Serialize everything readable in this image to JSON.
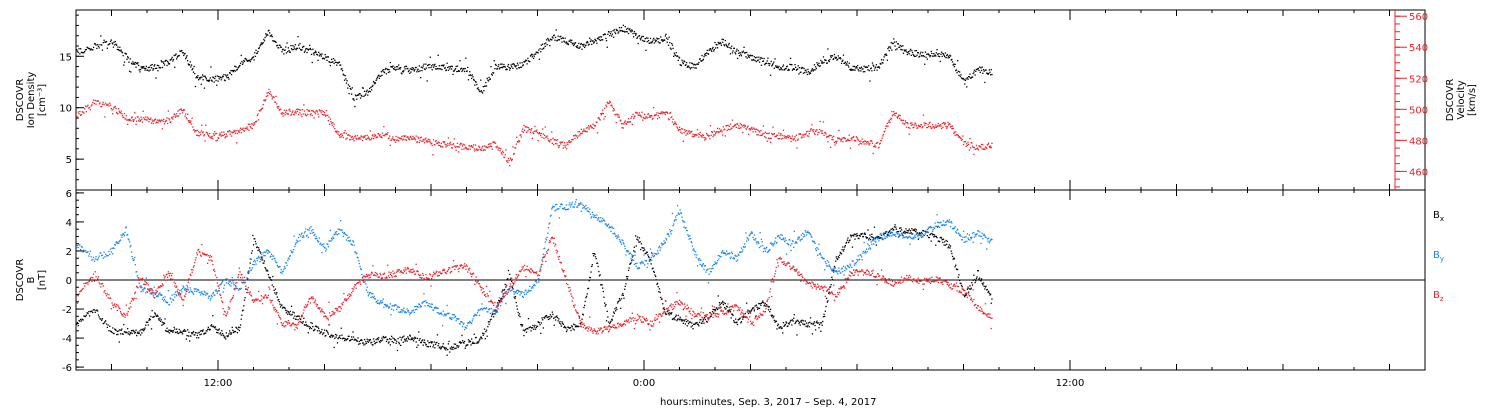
{
  "colors": {
    "black": "#000000",
    "red": "#e8242b",
    "blue": "#1a86e6",
    "axis": "#000000"
  },
  "x_axis": {
    "label": "hours:minutes, Sep.  3, 2017 – Sep.  4, 2017",
    "ticks": [
      {
        "label": "12:00",
        "hours": 12
      },
      {
        "label": "0:00",
        "hours": 24
      },
      {
        "label": "12:00",
        "hours": 36
      }
    ]
  },
  "chart_data": [
    {
      "type": "scatter",
      "panel": "top",
      "x_units": "hours since Sep. 3, 2017 00:00",
      "xlim": [
        8,
        46
      ],
      "grid": false,
      "left_axis": {
        "label_lines": [
          "DSCOVR",
          "Ion Density",
          "[cm⁻³]"
        ],
        "ticks": [
          "5",
          "10",
          "15"
        ],
        "ylim": [
          2,
          19.5
        ]
      },
      "right_axis": {
        "label_lines": [
          "DSCOVR",
          "Velocity",
          "[km/s]"
        ],
        "ticks": [
          "460",
          "480",
          "500",
          "520",
          "540",
          "560"
        ],
        "ylim": [
          448,
          564
        ],
        "color": "#e8242b"
      },
      "series": [
        {
          "color": "#000000",
          "axis": "left",
          "x": [
            8.0,
            8.5,
            9.0,
            9.4,
            9.8,
            10.2,
            10.6,
            11.0,
            11.4,
            11.8,
            12.2,
            12.6,
            13.0,
            13.4,
            13.8,
            14.2,
            14.6,
            15.0,
            15.4,
            15.8,
            16.2,
            16.6,
            17.0,
            17.4,
            17.8,
            18.2,
            18.6,
            19.0,
            19.4,
            19.8,
            20.2,
            20.6,
            21.0,
            21.4,
            21.8,
            22.2,
            22.6,
            23.0,
            23.4,
            23.8,
            24.2,
            24.6,
            25.0,
            25.4,
            25.8,
            26.2,
            26.6,
            27.0,
            27.4,
            27.8,
            28.2,
            28.6,
            29.0,
            29.4,
            29.8,
            30.2,
            30.6,
            31.0,
            31.4,
            31.8,
            32.2,
            32.6,
            33.0
          ],
          "y": [
            15.5,
            16.0,
            16.6,
            15.0,
            13.8,
            14.0,
            14.5,
            15.5,
            13.0,
            12.8,
            13.0,
            14.3,
            15.0,
            17.5,
            15.5,
            16.0,
            15.5,
            15.0,
            14.2,
            11.0,
            11.5,
            13.5,
            14.0,
            13.7,
            14.0,
            14.0,
            13.8,
            13.8,
            11.5,
            14.0,
            14.0,
            14.3,
            15.5,
            17.0,
            16.5,
            16.0,
            16.5,
            17.2,
            17.8,
            17.0,
            16.5,
            16.8,
            14.5,
            14.0,
            15.5,
            16.5,
            15.5,
            15.0,
            14.5,
            14.0,
            14.0,
            13.5,
            14.5,
            15.0,
            14.0,
            13.8,
            14.0,
            16.5,
            15.5,
            15.2,
            15.3,
            15.0,
            12.5
          ],
          "end": {
            "x": [
              33.4,
              33.8
            ],
            "y": [
              13.8,
              13.5
            ]
          }
        },
        {
          "color": "#e8242b",
          "axis": "right",
          "x": [
            8.0,
            8.5,
            9.0,
            9.4,
            9.8,
            10.2,
            10.6,
            11.0,
            11.4,
            11.8,
            12.2,
            12.6,
            13.0,
            13.4,
            13.8,
            14.2,
            14.6,
            15.0,
            15.4,
            15.8,
            16.2,
            16.6,
            17.0,
            17.4,
            17.8,
            18.2,
            18.6,
            19.0,
            19.4,
            19.8,
            20.2,
            20.6,
            21.0,
            21.4,
            21.8,
            22.2,
            22.6,
            23.0,
            23.4,
            23.8,
            24.2,
            24.6,
            25.0,
            25.4,
            25.8,
            26.2,
            26.6,
            27.0,
            27.4,
            27.8,
            28.2,
            28.6,
            29.0,
            29.4,
            29.8,
            30.2,
            30.6,
            31.0,
            31.4,
            31.8,
            32.2,
            32.6,
            33.0
          ],
          "y": [
            496,
            505,
            502,
            495,
            494,
            493,
            493,
            500,
            485,
            483,
            484,
            487,
            490,
            512,
            498,
            499,
            498,
            498,
            484,
            482,
            482,
            484,
            481,
            482,
            480,
            478,
            477,
            476,
            475,
            478,
            466,
            488,
            485,
            480,
            477,
            486,
            490,
            505,
            490,
            498,
            495,
            498,
            487,
            484,
            483,
            488,
            490,
            487,
            484,
            483,
            481,
            485,
            486,
            480,
            482,
            479,
            477,
            499,
            490,
            490,
            490,
            490,
            478
          ],
          "end": {
            "x": [
              33.4,
              33.8
            ],
            "y": [
              476,
              477
            ]
          }
        }
      ]
    },
    {
      "type": "scatter",
      "panel": "bottom",
      "x_units": "hours since Sep. 3, 2017 00:00",
      "xlim": [
        8,
        46
      ],
      "grid": false,
      "zero_line": true,
      "left_axis": {
        "label_lines": [
          "DSCOVR",
          "B",
          "[nT]"
        ],
        "ticks": [
          "-6",
          "-4",
          "-2",
          "0",
          "2",
          "4",
          "6"
        ],
        "ylim": [
          -6.2,
          6.2
        ]
      },
      "legend": {
        "placement": "right",
        "entries": [
          {
            "text": "B",
            "sub": "x",
            "color": "#000000"
          },
          {
            "text": "B",
            "sub": "y",
            "color": "#1a86e6"
          },
          {
            "text": "B",
            "sub": "z",
            "color": "#e8242b"
          }
        ]
      },
      "series": [
        {
          "name": "Bx",
          "color": "#000000",
          "x": [
            8.0,
            8.5,
            9.0,
            9.4,
            9.8,
            10.2,
            10.6,
            11.0,
            11.4,
            11.8,
            12.2,
            12.6,
            13.0,
            13.4,
            13.8,
            14.2,
            14.6,
            15.0,
            15.4,
            15.8,
            16.2,
            16.6,
            17.0,
            17.4,
            17.8,
            18.2,
            18.6,
            19.0,
            19.4,
            19.8,
            20.2,
            20.6,
            21.0,
            21.4,
            21.8,
            22.2,
            22.6,
            23.0,
            23.4,
            23.8,
            24.2,
            24.6,
            25.0,
            25.4,
            25.8,
            26.2,
            26.6,
            27.0,
            27.4,
            27.8,
            28.2,
            28.6,
            29.0,
            29.4,
            29.8,
            30.2,
            30.6,
            31.0,
            31.4,
            31.8,
            32.2,
            32.6,
            33.0
          ],
          "y": [
            -3.0,
            -2.0,
            -3.5,
            -3.5,
            -3.6,
            -2.2,
            -3.6,
            -3.5,
            -3.8,
            -3.2,
            -3.8,
            -3.3,
            2.9,
            0.5,
            -2.0,
            -2.5,
            -3.2,
            -3.6,
            -3.9,
            -4.1,
            -4.3,
            -4.0,
            -4.2,
            -3.9,
            -4.3,
            -4.5,
            -4.6,
            -4.3,
            -4.0,
            -2.0,
            0.3,
            -3.6,
            -3.0,
            -2.3,
            -3.3,
            -3.1,
            2.0,
            -3.0,
            -0.8,
            3.0,
            1.2,
            -2.3,
            -2.6,
            -3.2,
            -2.5,
            -1.5,
            -3.0,
            -2.0,
            -1.5,
            -3.2,
            -2.8,
            -3.0,
            -3.1,
            1.5,
            3.0,
            3.2,
            2.8,
            3.5,
            3.4,
            3.3,
            3.0,
            2.4,
            -1.0
          ],
          "end": {
            "x": [
              33.4,
              33.8
            ],
            "y": [
              0.3,
              -1.2
            ]
          }
        },
        {
          "name": "By",
          "color": "#1a86e6",
          "x": [
            8.0,
            8.5,
            9.0,
            9.4,
            9.8,
            10.2,
            10.6,
            11.0,
            11.4,
            11.8,
            12.2,
            12.6,
            13.0,
            13.4,
            13.8,
            14.2,
            14.6,
            15.0,
            15.4,
            15.8,
            16.2,
            16.6,
            17.0,
            17.4,
            17.8,
            18.2,
            18.6,
            19.0,
            19.4,
            19.8,
            20.2,
            20.6,
            21.0,
            21.4,
            21.8,
            22.2,
            22.6,
            23.0,
            23.4,
            23.8,
            24.2,
            24.6,
            25.0,
            25.4,
            25.8,
            26.2,
            26.6,
            27.0,
            27.4,
            27.8,
            28.2,
            28.6,
            29.0,
            29.4,
            29.8,
            30.2,
            30.6,
            31.0,
            31.4,
            31.8,
            32.2,
            32.6,
            33.0
          ],
          "y": [
            2.5,
            1.5,
            2.0,
            3.5,
            -0.5,
            -0.8,
            -1.5,
            -0.5,
            -0.8,
            -1.2,
            0.0,
            -0.5,
            1.2,
            2.0,
            0.5,
            2.8,
            3.5,
            2.2,
            3.5,
            2.5,
            -0.8,
            -1.6,
            -1.9,
            -2.2,
            -1.5,
            -2.1,
            -2.5,
            -3.2,
            -1.8,
            -2.2,
            -0.5,
            -1.0,
            0.0,
            5.0,
            5.1,
            5.3,
            4.5,
            3.8,
            2.5,
            1.0,
            1.5,
            2.8,
            4.8,
            2.0,
            0.5,
            2.0,
            1.5,
            3.2,
            2.0,
            3.0,
            2.5,
            3.4,
            1.5,
            0.6,
            1.0,
            2.0,
            3.0,
            3.2,
            3.0,
            3.1,
            3.8,
            4.0,
            2.8
          ],
          "end": {
            "x": [
              33.4,
              33.8
            ],
            "y": [
              3.3,
              2.6
            ]
          }
        },
        {
          "name": "Bz",
          "color": "#e8242b",
          "x": [
            8.0,
            8.5,
            9.0,
            9.4,
            9.8,
            10.2,
            10.6,
            11.0,
            11.4,
            11.8,
            12.2,
            12.6,
            13.0,
            13.4,
            13.8,
            14.2,
            14.6,
            15.0,
            15.4,
            15.8,
            16.2,
            16.6,
            17.0,
            17.4,
            17.8,
            18.2,
            18.6,
            19.0,
            19.4,
            19.8,
            20.2,
            20.6,
            21.0,
            21.4,
            21.8,
            22.2,
            22.6,
            23.0,
            23.4,
            23.8,
            24.2,
            24.6,
            25.0,
            25.4,
            25.8,
            26.2,
            26.6,
            27.0,
            27.4,
            27.8,
            28.2,
            28.6,
            29.0,
            29.4,
            29.8,
            30.2,
            30.6,
            31.0,
            31.4,
            31.8,
            32.2,
            32.6,
            33.0
          ],
          "y": [
            -1.0,
            0.5,
            -1.5,
            -2.5,
            0.2,
            -1.0,
            0.5,
            -1.5,
            2.0,
            1.5,
            -2.5,
            0.5,
            -1.5,
            -1.0,
            -3.0,
            -3.2,
            -1.0,
            -2.5,
            -2.0,
            -0.5,
            0.4,
            0.3,
            0.5,
            0.8,
            0.2,
            0.5,
            0.8,
            1.0,
            -0.5,
            -2.0,
            -0.5,
            1.0,
            0.5,
            3.0,
            0.0,
            -3.0,
            -3.5,
            -3.3,
            -3.0,
            -2.5,
            -3.0,
            -2.0,
            -1.5,
            -2.3,
            -2.5,
            -2.2,
            -1.8,
            -3.0,
            -2.0,
            1.5,
            0.8,
            -0.2,
            -0.5,
            -1.0,
            0.5,
            0.6,
            0.3,
            -0.2,
            0.2,
            -0.1,
            0.1,
            -0.3,
            -0.8
          ],
          "end": {
            "x": [
              33.4,
              33.8
            ],
            "y": [
              -1.8,
              -2.6
            ]
          }
        }
      ]
    }
  ]
}
